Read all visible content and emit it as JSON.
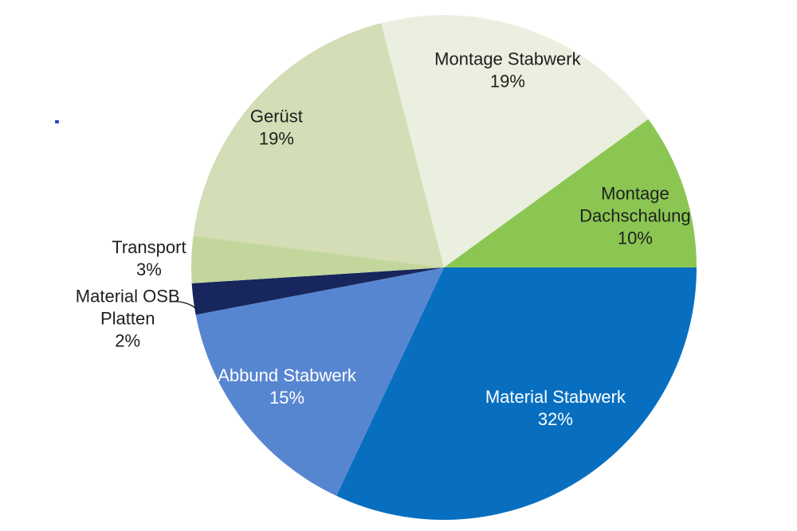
{
  "figure": {
    "background_color": "#ffffff"
  },
  "chart_data": {
    "type": "pie",
    "title": "",
    "unit": "percent",
    "total": 100,
    "direction": "clockwise",
    "start_angle_deg_from_top": -14.4,
    "legend_position": "none",
    "labels_on_slices": true,
    "slices": [
      {
        "label": "Montage Stabwerk",
        "value": 19,
        "pct_label": "19%",
        "label_lines": [
          "Montage Stabwerk"
        ],
        "color": "#ebefdf",
        "text_color": "#1f1f1f",
        "label_placement": "inside"
      },
      {
        "label": "Montage Dachschalung",
        "value": 10,
        "pct_label": "10%",
        "label_lines": [
          "Montage",
          "Dachschalung"
        ],
        "color": "#8bc653",
        "text_color": "#1f1f1f",
        "label_placement": "inside"
      },
      {
        "label": "Material Stabwerk",
        "value": 32,
        "pct_label": "32%",
        "label_lines": [
          "Material Stabwerk"
        ],
        "color": "#086fc0",
        "text_color": "#ffffff",
        "label_placement": "inside"
      },
      {
        "label": "Abbund Stabwerk",
        "value": 15,
        "pct_label": "15%",
        "label_lines": [
          "Abbund Stabwerk"
        ],
        "color": "#5786d1",
        "text_color": "#ffffff",
        "label_placement": "inside"
      },
      {
        "label": "Material OSB Platten",
        "value": 2,
        "pct_label": "2%",
        "label_lines": [
          "Material OSB",
          "Platten"
        ],
        "color": "#17265c",
        "text_color": "#1f1f1f",
        "label_placement": "outside",
        "leader_line": true
      },
      {
        "label": "Transport",
        "value": 3,
        "pct_label": "3%",
        "label_lines": [
          "Transport"
        ],
        "color": "#c3d69b",
        "text_color": "#1f1f1f",
        "label_placement": "outside"
      },
      {
        "label": "Gerüst",
        "value": 19,
        "pct_label": "19%",
        "label_lines": [
          "Gerüst"
        ],
        "color": "#d3ddb6",
        "text_color": "#1f1f1f",
        "label_placement": "inside"
      }
    ]
  }
}
